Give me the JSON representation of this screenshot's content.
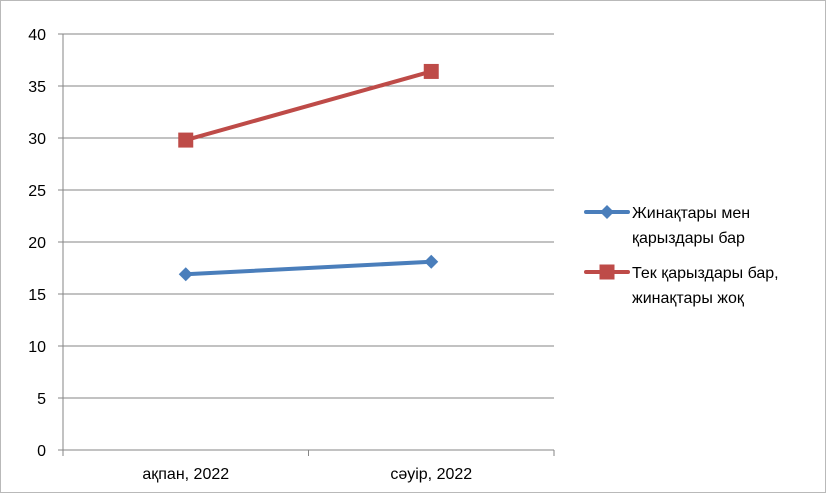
{
  "chart_data": {
    "type": "line",
    "categories": [
      "ақпан, 2022",
      "сәуір, 2022"
    ],
    "series": [
      {
        "name": "Жинақтары мен қарыздары бар",
        "name_lines": [
          "Жинақтары мен",
          "қарыздары бар"
        ],
        "values": [
          16.9,
          18.1
        ],
        "color": "#4a7ebb",
        "marker": "diamond"
      },
      {
        "name": "Тек қарыздары бар, жинақтары жоқ",
        "name_lines": [
          "Тек қарыздары бар,",
          "жинақтары жоқ"
        ],
        "values": [
          29.8,
          36.4
        ],
        "color": "#be4b48",
        "marker": "square"
      }
    ],
    "ylim": [
      0,
      40
    ],
    "yticks": [
      0,
      5,
      10,
      15,
      20,
      25,
      30,
      35,
      40
    ],
    "grid": true,
    "legend_position": "right"
  }
}
